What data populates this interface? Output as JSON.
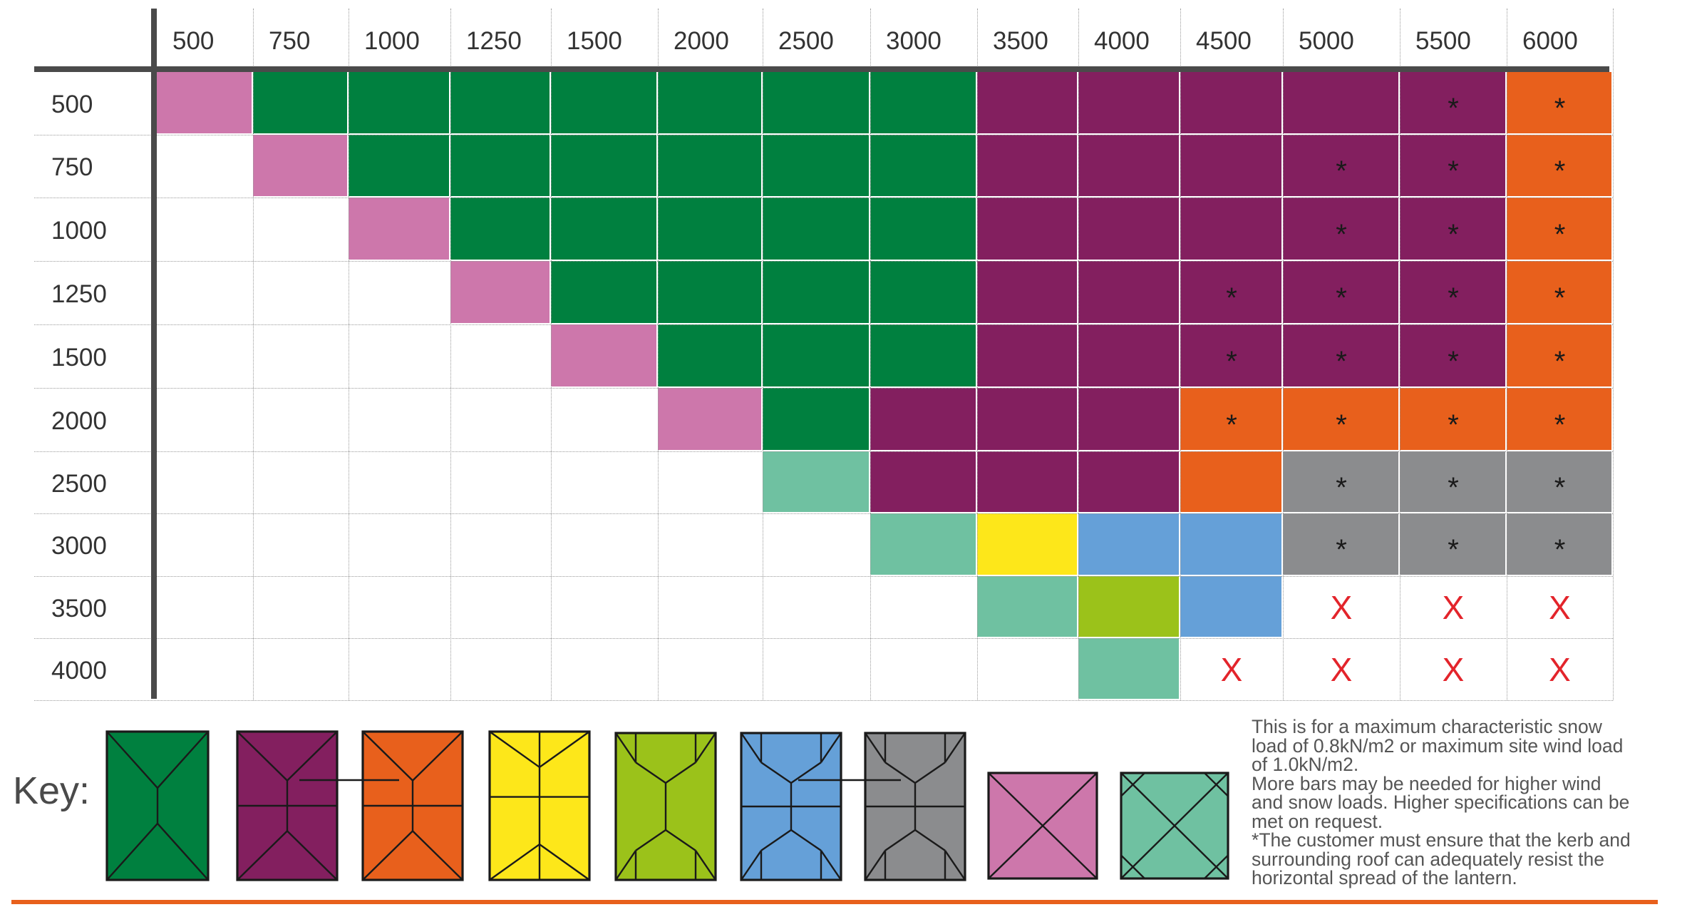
{
  "colors": {
    "green": "#00803f",
    "purple": "#831f5f",
    "orange": "#e8601c",
    "yellow": "#fde71a",
    "lime": "#9bc21a",
    "blue": "#65a0d8",
    "grey": "#8b8c8e",
    "pink": "#cd77ab",
    "teal": "#6fc1a1",
    "white": "#ffffff",
    "axis": "#4a4a4a",
    "x_mark": "#e3242b"
  },
  "table": {
    "column_headers": [
      "500",
      "750",
      "1000",
      "1250",
      "1500",
      "2000",
      "2500",
      "3000",
      "3500",
      "4000",
      "4500",
      "5000",
      "5500",
      "6000"
    ],
    "row_headers": [
      "500",
      "750",
      "1000",
      "1250",
      "1500",
      "2000",
      "2500",
      "3000",
      "3500",
      "4000"
    ],
    "cells": [
      [
        "pink",
        "green",
        "green",
        "green",
        "green",
        "green",
        "green",
        "green",
        "purple",
        "purple",
        "purple",
        "purple",
        "purple",
        "orange"
      ],
      [
        "white",
        "pink",
        "green",
        "green",
        "green",
        "green",
        "green",
        "green",
        "purple",
        "purple",
        "purple",
        "purple",
        "purple",
        "orange"
      ],
      [
        "white",
        "white",
        "pink",
        "green",
        "green",
        "green",
        "green",
        "green",
        "purple",
        "purple",
        "purple",
        "purple",
        "purple",
        "orange"
      ],
      [
        "white",
        "white",
        "white",
        "pink",
        "green",
        "green",
        "green",
        "green",
        "purple",
        "purple",
        "purple",
        "purple",
        "purple",
        "orange"
      ],
      [
        "white",
        "white",
        "white",
        "white",
        "pink",
        "green",
        "green",
        "green",
        "purple",
        "purple",
        "purple",
        "purple",
        "purple",
        "orange"
      ],
      [
        "white",
        "white",
        "white",
        "white",
        "white",
        "pink",
        "green",
        "purple",
        "purple",
        "purple",
        "orange",
        "orange",
        "orange",
        "orange"
      ],
      [
        "white",
        "white",
        "white",
        "white",
        "white",
        "white",
        "teal",
        "purple",
        "purple",
        "purple",
        "orange",
        "grey",
        "grey",
        "grey"
      ],
      [
        "white",
        "white",
        "white",
        "white",
        "white",
        "white",
        "white",
        "teal",
        "yellow",
        "blue",
        "blue",
        "grey",
        "grey",
        "grey"
      ],
      [
        "white",
        "white",
        "white",
        "white",
        "white",
        "white",
        "white",
        "white",
        "teal",
        "lime",
        "blue",
        "white",
        "white",
        "white"
      ],
      [
        "white",
        "white",
        "white",
        "white",
        "white",
        "white",
        "white",
        "white",
        "white",
        "teal",
        "white",
        "white",
        "white",
        "white"
      ]
    ],
    "marks": [
      [
        "",
        "",
        "",
        "",
        "",
        "",
        "",
        "",
        "",
        "",
        "",
        "",
        "*",
        "*"
      ],
      [
        "",
        "",
        "",
        "",
        "",
        "",
        "",
        "",
        "",
        "",
        "",
        "*",
        "*",
        "*"
      ],
      [
        "",
        "",
        "",
        "",
        "",
        "",
        "",
        "",
        "",
        "",
        "",
        "*",
        "*",
        "*"
      ],
      [
        "",
        "",
        "",
        "",
        "",
        "",
        "",
        "",
        "",
        "",
        "*",
        "*",
        "*",
        "*"
      ],
      [
        "",
        "",
        "",
        "",
        "",
        "",
        "",
        "",
        "",
        "",
        "*",
        "*",
        "*",
        "*"
      ],
      [
        "",
        "",
        "",
        "",
        "",
        "",
        "",
        "",
        "",
        "",
        "*",
        "*",
        "*",
        "*"
      ],
      [
        "",
        "",
        "",
        "",
        "",
        "",
        "",
        "",
        "",
        "",
        "",
        "*",
        "*",
        "*"
      ],
      [
        "",
        "",
        "",
        "",
        "",
        "",
        "",
        "",
        "",
        "",
        "",
        "*",
        "*",
        "*"
      ],
      [
        "",
        "",
        "",
        "",
        "",
        "",
        "",
        "",
        "",
        "",
        "",
        "X",
        "X",
        "X"
      ],
      [
        "",
        "",
        "",
        "",
        "",
        "",
        "",
        "",
        "",
        "",
        "X",
        "X",
        "X",
        "X"
      ]
    ]
  },
  "key": {
    "label": "Key:",
    "icons": [
      {
        "name": "key-green-icon",
        "color": "green"
      },
      {
        "name": "key-purple-icon",
        "color": "purple"
      },
      {
        "name": "key-orange-icon",
        "color": "orange"
      },
      {
        "name": "key-yellow-icon",
        "color": "yellow"
      },
      {
        "name": "key-lime-icon",
        "color": "lime"
      },
      {
        "name": "key-blue-icon",
        "color": "blue"
      },
      {
        "name": "key-grey-icon",
        "color": "grey"
      },
      {
        "name": "key-pink-icon",
        "color": "pink"
      },
      {
        "name": "key-teal-icon",
        "color": "teal"
      }
    ]
  },
  "notes": {
    "lines": [
      "This is for a maximum characteristic snow",
      "load of 0.8kN/m2 or maximum site wind load",
      "of 1.0kN/m2.",
      "More bars may be needed for higher wind",
      "and snow loads. Higher specifications can be",
      "met on request.",
      "*The customer must ensure that the kerb and",
      "surrounding roof can adequately resist the",
      "horizontal spread of the lantern."
    ]
  }
}
